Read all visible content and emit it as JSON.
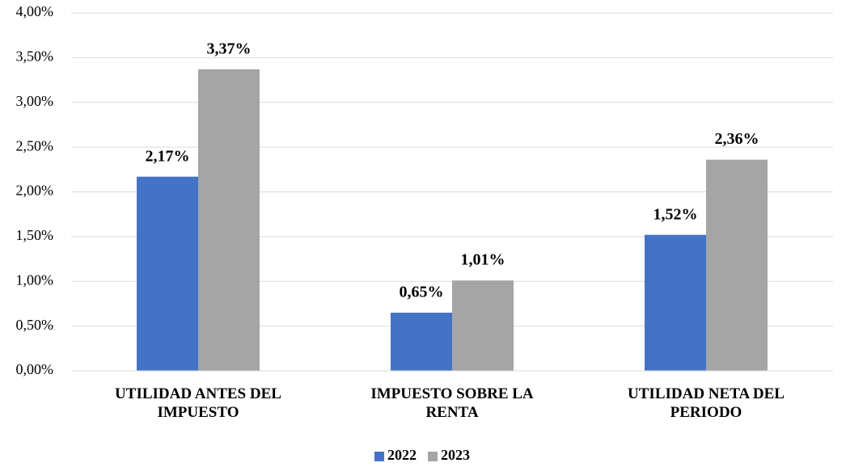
{
  "chart_data": {
    "type": "bar",
    "categories": [
      "UTILIDAD ANTES DEL IMPUESTO",
      "IMPUESTO SOBRE LA RENTA",
      "UTILIDAD NETA DEL PERIODO"
    ],
    "series": [
      {
        "name": "2022",
        "color": "#4472c4",
        "values": [
          2.17,
          0.65,
          1.52
        ],
        "value_labels": [
          "2,17%",
          "0,65%",
          "1,52%"
        ]
      },
      {
        "name": "2023",
        "color": "#a5a5a5",
        "values": [
          3.37,
          1.01,
          2.36
        ],
        "value_labels": [
          "3,37%",
          "1,01%",
          "2,36%"
        ]
      }
    ],
    "ylim": [
      0,
      4
    ],
    "yticks": [
      {
        "value": 0,
        "label": "0,00%"
      },
      {
        "value": 0.5,
        "label": "0,50%"
      },
      {
        "value": 1,
        "label": "1,00%"
      },
      {
        "value": 1.5,
        "label": "1,50%"
      },
      {
        "value": 2,
        "label": "2,00%"
      },
      {
        "value": 2.5,
        "label": "2,50%"
      },
      {
        "value": 3,
        "label": "3,00%"
      },
      {
        "value": 3.5,
        "label": "3,50%"
      },
      {
        "value": 4,
        "label": "4,00%"
      }
    ],
    "grid": true,
    "legend": "bottom"
  }
}
